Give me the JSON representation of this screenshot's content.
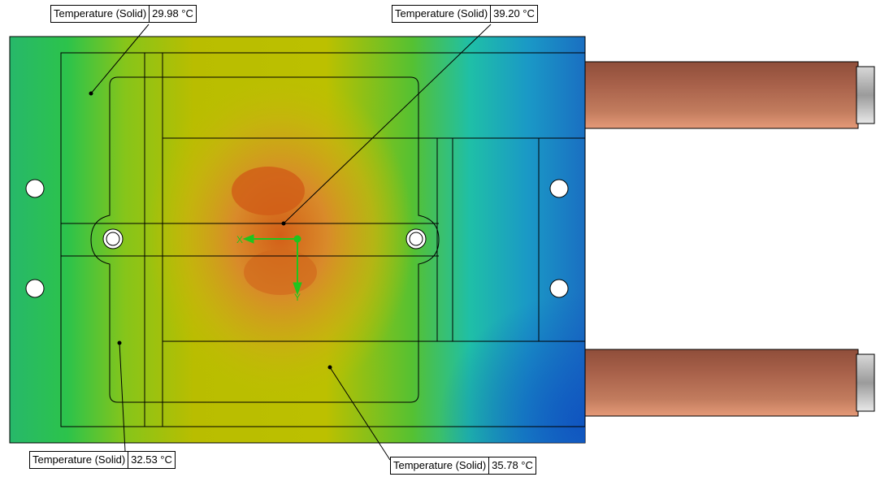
{
  "probes": [
    {
      "quantity": "Temperature (Solid)",
      "value": "29.98 °C"
    },
    {
      "quantity": "Temperature (Solid)",
      "value": "39.20 °C"
    },
    {
      "quantity": "Temperature (Solid)",
      "value": "32.53 °C"
    },
    {
      "quantity": "Temperature (Solid)",
      "value": "35.78 °C"
    }
  ],
  "triad": {
    "x_label": "X",
    "y_label": "Y",
    "color": "#1ec41e"
  },
  "colors": {
    "hot": "#d7651a",
    "warm": "#b7bd00",
    "mid": "#2fbe2a",
    "cool": "#1fb8b0",
    "cold": "#1865c0",
    "copper": "#a8664f",
    "outline": "#000000"
  }
}
